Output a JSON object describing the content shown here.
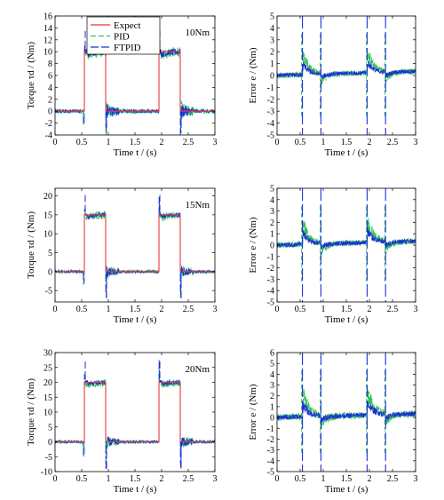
{
  "colors": {
    "expect": "#e8393a",
    "pid": "#33c05a",
    "ftpid": "#1a2fd6"
  },
  "legend": {
    "entries": [
      "Expect",
      "PID",
      "FTPID"
    ]
  },
  "chart_data": [
    {
      "type": "line",
      "id": "torque-10",
      "annotation": "10Nm",
      "xlabel": "Time t / (s)",
      "ylabel": "Torque τd / (Nm)",
      "xlim": [
        0,
        3
      ],
      "ylim": [
        -4,
        16
      ],
      "xticks": [
        0,
        0.5,
        1,
        1.5,
        2,
        2.5,
        3
      ],
      "yticks": [
        -4,
        -2,
        0,
        2,
        4,
        6,
        8,
        10,
        12,
        14,
        16
      ],
      "step": {
        "low": 0,
        "high": 10,
        "intervals": [
          [
            0.55,
            0.95
          ],
          [
            1.95,
            2.35
          ]
        ]
      },
      "series": [
        {
          "name": "Expect",
          "x": [
            0,
            0.55,
            0.55,
            0.95,
            0.95,
            1.95,
            1.95,
            2.35,
            2.35,
            3
          ],
          "y": [
            0,
            0,
            10,
            10,
            0,
            0,
            10,
            10,
            0,
            0
          ]
        },
        {
          "name": "PID",
          "approx": {
            "noise": 0.8,
            "overshoot": 4,
            "settle": 0.9
          }
        },
        {
          "name": "FTPID",
          "approx": {
            "noise": 0.6,
            "overshoot": 3.5,
            "settle": 0.8
          }
        }
      ]
    },
    {
      "type": "line",
      "id": "error-10",
      "xlabel": "Time t / (s)",
      "ylabel": "Error e / (Nm)",
      "xlim": [
        0,
        3
      ],
      "ylim": [
        -5,
        5
      ],
      "xticks": [
        0,
        0.5,
        1,
        1.5,
        2,
        2.5,
        3
      ],
      "yticks": [
        -5,
        -4,
        -3,
        -2,
        -1,
        0,
        1,
        2,
        3,
        4,
        5
      ],
      "spikes": [
        0.55,
        0.95,
        1.95,
        2.35
      ],
      "series": [
        {
          "name": "PID",
          "approx": {
            "bump": 2.0,
            "noise": 0.5
          }
        },
        {
          "name": "FTPID",
          "approx": {
            "bump": 1.0,
            "noise": 0.35
          }
        }
      ]
    },
    {
      "type": "line",
      "id": "torque-15",
      "annotation": "15Nm",
      "xlabel": "Time t / (s)",
      "ylabel": "Torque τd / (Nm)",
      "xlim": [
        0,
        3
      ],
      "ylim": [
        -8,
        22
      ],
      "xticks": [
        0,
        0.5,
        1,
        1.5,
        2,
        2.5,
        3
      ],
      "yticks": [
        -5,
        0,
        5,
        10,
        15,
        20
      ],
      "step": {
        "low": 0,
        "high": 15,
        "intervals": [
          [
            0.55,
            0.95
          ],
          [
            1.95,
            2.35
          ]
        ]
      },
      "series": [
        {
          "name": "Expect",
          "x": [
            0,
            0.55,
            0.55,
            0.95,
            0.95,
            1.95,
            1.95,
            2.35,
            2.35,
            3
          ],
          "y": [
            0,
            0,
            15,
            15,
            0,
            0,
            15,
            15,
            0,
            0
          ]
        },
        {
          "name": "PID",
          "approx": {
            "noise": 1.0,
            "overshoot": 5,
            "settle": 1.2
          }
        },
        {
          "name": "FTPID",
          "approx": {
            "noise": 0.7,
            "overshoot": 6,
            "settle": 1.0
          }
        }
      ]
    },
    {
      "type": "line",
      "id": "error-15",
      "xlabel": "Time t / (s)",
      "ylabel": "Error e / (Nm)",
      "xlim": [
        0,
        3
      ],
      "ylim": [
        -5,
        5
      ],
      "xticks": [
        0,
        0.5,
        1,
        1.5,
        2,
        2.5,
        3
      ],
      "yticks": [
        -5,
        -4,
        -3,
        -2,
        -1,
        0,
        1,
        2,
        3,
        4,
        5
      ],
      "spikes": [
        0.55,
        0.95,
        1.95,
        2.35
      ],
      "series": [
        {
          "name": "PID",
          "approx": {
            "bump": 2.2,
            "noise": 0.55
          }
        },
        {
          "name": "FTPID",
          "approx": {
            "bump": 1.1,
            "noise": 0.4
          }
        }
      ]
    },
    {
      "type": "line",
      "id": "torque-20",
      "annotation": "20Nm",
      "xlabel": "Time t / (s)",
      "ylabel": "Torque τd / (Nm)",
      "xlim": [
        0,
        3
      ],
      "ylim": [
        -10,
        30
      ],
      "xticks": [
        0,
        0.5,
        1,
        1.5,
        2,
        2.5,
        3
      ],
      "yticks": [
        -10,
        -5,
        0,
        5,
        10,
        15,
        20,
        25,
        30
      ],
      "step": {
        "low": 0,
        "high": 20,
        "intervals": [
          [
            0.55,
            0.95
          ],
          [
            1.95,
            2.35
          ]
        ]
      },
      "series": [
        {
          "name": "Expect",
          "x": [
            0,
            0.55,
            0.55,
            0.95,
            0.95,
            1.95,
            1.95,
            2.35,
            2.35,
            3
          ],
          "y": [
            0,
            0,
            20,
            20,
            0,
            0,
            20,
            20,
            0,
            0
          ]
        },
        {
          "name": "PID",
          "approx": {
            "noise": 1.2,
            "overshoot": 5,
            "settle": 1.5
          }
        },
        {
          "name": "FTPID",
          "approx": {
            "noise": 0.9,
            "overshoot": 9,
            "settle": 1.2
          }
        }
      ]
    },
    {
      "type": "line",
      "id": "error-20",
      "xlabel": "Time t / (s)",
      "ylabel": "Error e / (Nm)",
      "xlim": [
        0,
        3
      ],
      "ylim": [
        -5,
        6
      ],
      "xticks": [
        0,
        0.5,
        1,
        1.5,
        2,
        2.5,
        3
      ],
      "yticks": [
        -5,
        -4,
        -3,
        -2,
        -1,
        0,
        1,
        2,
        3,
        4,
        5,
        6
      ],
      "spikes": [
        0.55,
        0.95,
        1.95,
        2.35
      ],
      "series": [
        {
          "name": "PID",
          "approx": {
            "bump": 2.5,
            "noise": 0.65
          }
        },
        {
          "name": "FTPID",
          "approx": {
            "bump": 1.3,
            "noise": 0.45
          }
        }
      ]
    }
  ]
}
